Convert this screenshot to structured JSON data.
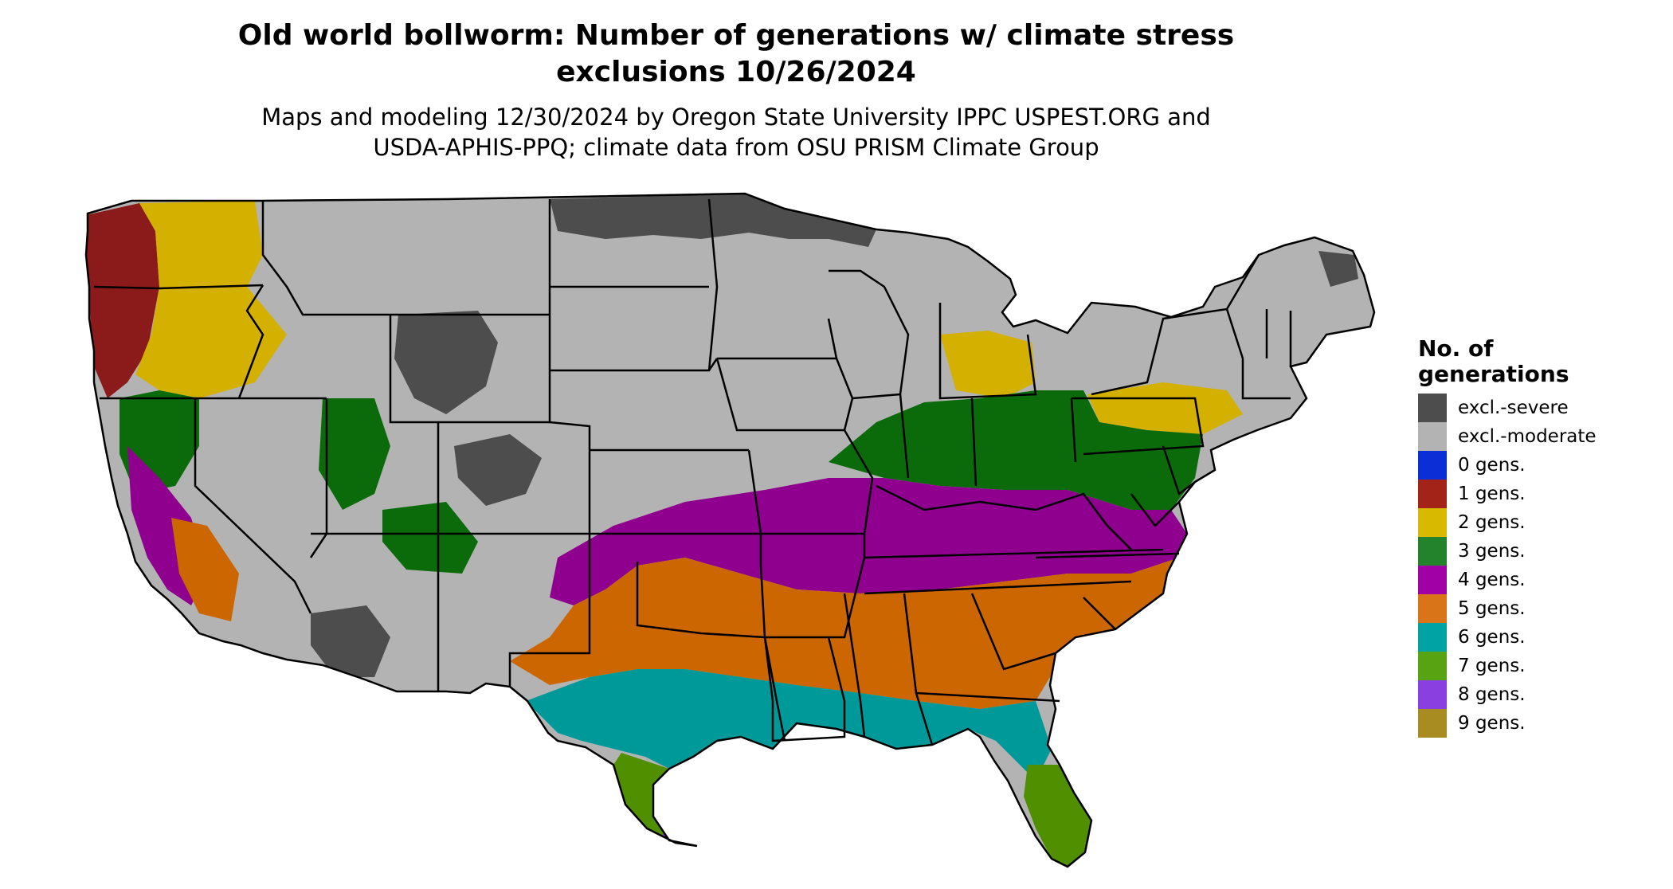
{
  "title": {
    "line1": "Old world bollworm: Number of generations w/ climate stress",
    "line2": "exclusions 10/26/2024"
  },
  "subtitle": {
    "line1": "Maps and modeling 12/30/2024 by Oregon State University IPPC USPEST.ORG and",
    "line2": "USDA-APHIS-PPQ; climate data from OSU PRISM Climate Group"
  },
  "legend": {
    "title_line1": "No. of",
    "title_line2": "generations",
    "items": [
      {
        "label": "excl.-severe",
        "color": "#4d4d4d"
      },
      {
        "label": "excl.-moderate",
        "color": "#b3b3b3"
      },
      {
        "label": "0 gens.",
        "color": "#0a2fd6"
      },
      {
        "label": "1 gens.",
        "color": "#a32318"
      },
      {
        "label": "2 gens.",
        "color": "#d9b800"
      },
      {
        "label": "3 gens.",
        "color": "#23822c"
      },
      {
        "label": "4 gens.",
        "color": "#a100a6"
      },
      {
        "label": "5 gens.",
        "color": "#d97518"
      },
      {
        "label": "6 gens.",
        "color": "#00a3a3"
      },
      {
        "label": "7 gens.",
        "color": "#57a311"
      },
      {
        "label": "8 gens.",
        "color": "#8a3fe0"
      },
      {
        "label": "9 gens.",
        "color": "#a88c22"
      }
    ]
  },
  "map": {
    "colors": {
      "excl_severe": "#4d4d4d",
      "excl_moderate": "#b3b3b3",
      "gen1": "#8b1a1a",
      "gen2": "#d4b000",
      "gen3": "#0b6b0b",
      "gen4": "#8f008f",
      "gen5": "#cc6600",
      "gen6": "#009999",
      "gen7": "#4f8f00",
      "gen8": "#8a3fe0",
      "border": "#000000"
    }
  }
}
